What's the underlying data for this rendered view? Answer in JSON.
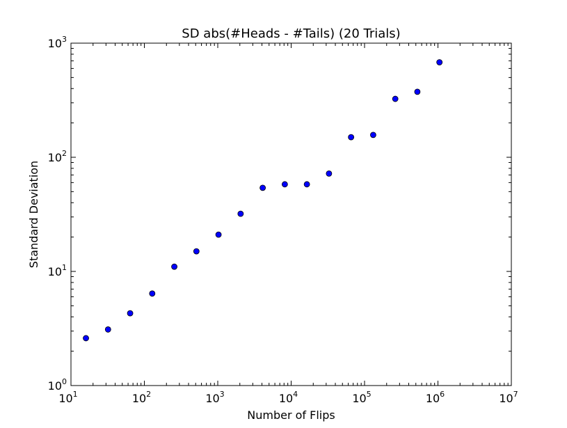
{
  "chart_data": {
    "type": "scatter",
    "title": "SD abs(#Heads - #Tails) (20 Trials)",
    "xlabel": "Number of Flips",
    "ylabel": "Standard Deviation",
    "x_scale": "log",
    "y_scale": "log",
    "xlim": [
      10,
      10000000
    ],
    "ylim": [
      1,
      1000
    ],
    "x_ticks": [
      {
        "base": "10",
        "exp": "1",
        "value": 10
      },
      {
        "base": "10",
        "exp": "2",
        "value": 100
      },
      {
        "base": "10",
        "exp": "3",
        "value": 1000
      },
      {
        "base": "10",
        "exp": "4",
        "value": 10000
      },
      {
        "base": "10",
        "exp": "5",
        "value": 100000
      },
      {
        "base": "10",
        "exp": "6",
        "value": 1000000
      },
      {
        "base": "10",
        "exp": "7",
        "value": 10000000
      }
    ],
    "y_ticks": [
      {
        "base": "10",
        "exp": "0",
        "value": 1
      },
      {
        "base": "10",
        "exp": "1",
        "value": 10
      },
      {
        "base": "10",
        "exp": "2",
        "value": 100
      },
      {
        "base": "10",
        "exp": "3",
        "value": 1000
      }
    ],
    "grid": false,
    "marker_color": "#0000ff",
    "marker_edge_color": "#000000",
    "series": [
      {
        "x": [
          16,
          32,
          64,
          128,
          256,
          512,
          1024,
          2048,
          4096,
          8192,
          16384,
          32768,
          65536,
          131072,
          262144,
          524288,
          1048576
        ],
        "y": [
          2.6,
          3.1,
          4.3,
          6.4,
          11,
          15,
          21,
          32,
          54,
          58,
          58,
          72,
          150,
          157,
          325,
          375,
          680
        ]
      }
    ]
  }
}
